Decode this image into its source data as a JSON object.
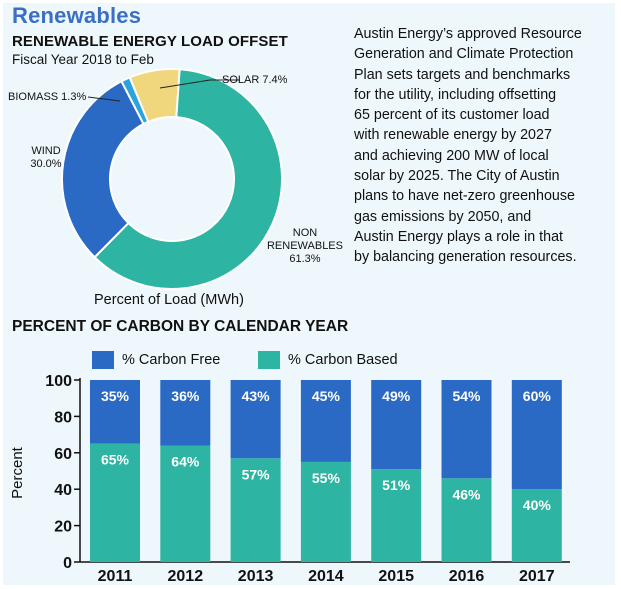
{
  "section_title": "Renewables",
  "pie": {
    "title": "RENEWABLE ENERGY LOAD OFFSET",
    "subtitle": "Fiscal Year 2018 to Feb",
    "caption": "Percent of Load (MWh)",
    "labels": {
      "solar": "SOLAR 7.4%",
      "biomass": "BIOMASS 1.3%",
      "wind_name": "WIND",
      "wind_pct": "30.0%",
      "non_line1": "NON",
      "non_line2": "RENEWABLES",
      "non_pct": "61.3%"
    }
  },
  "paragraph": [
    "Austin Energy’s approved Resource",
    "Generation and Climate Protection",
    "Plan sets targets and benchmarks",
    "for the utility, including offsetting",
    "65 percent of its customer load",
    "with renewable energy by 2027",
    "and achieving 200 MW of local",
    "solar by 2025. The City of Austin",
    "plans to have net-zero greenhouse",
    "gas emissions by 2050, and",
    "Austin Energy plays a role in that",
    "by balancing generation resources."
  ],
  "bar": {
    "title": "PERCENT OF CARBON BY CALENDAR YEAR",
    "legend": {
      "free": "% Carbon Free",
      "based": "% Carbon Based"
    },
    "ylabel": "Percent"
  },
  "colors": {
    "panel": "#eef7fb",
    "heading": "#3a6fc4",
    "blue": "#2a6ac4",
    "teal": "#2db4a2",
    "solar": "#f0d67c",
    "biomass": "#2aa3de"
  },
  "chart_data": [
    {
      "type": "pie",
      "title": "RENEWABLE ENERGY LOAD OFFSET",
      "subtitle": "Fiscal Year 2018 to Feb",
      "caption": "Percent of Load (MWh)",
      "slices": [
        {
          "name": "SOLAR",
          "value": 7.4,
          "color": "#f0d67c"
        },
        {
          "name": "NON RENEWABLES",
          "value": 61.3,
          "color": "#2db4a2"
        },
        {
          "name": "WIND",
          "value": 30.0,
          "color": "#2a6ac4"
        },
        {
          "name": "BIOMASS",
          "value": 1.3,
          "color": "#2aa3de"
        }
      ]
    },
    {
      "type": "bar",
      "stacked": true,
      "title": "PERCENT OF CARBON BY CALENDAR YEAR",
      "ylabel": "Percent",
      "ylim": [
        0,
        100
      ],
      "yticks": [
        0,
        20,
        40,
        60,
        80,
        100
      ],
      "legend": "top",
      "categories": [
        "2011",
        "2012",
        "2013",
        "2014",
        "2015",
        "2016",
        "2017"
      ],
      "series": [
        {
          "name": "% Carbon Based",
          "color": "#2db4a2",
          "values": [
            65,
            64,
            57,
            55,
            51,
            46,
            40
          ]
        },
        {
          "name": "% Carbon Free",
          "color": "#2a6ac4",
          "values": [
            35,
            36,
            43,
            45,
            49,
            54,
            60
          ]
        }
      ]
    }
  ]
}
